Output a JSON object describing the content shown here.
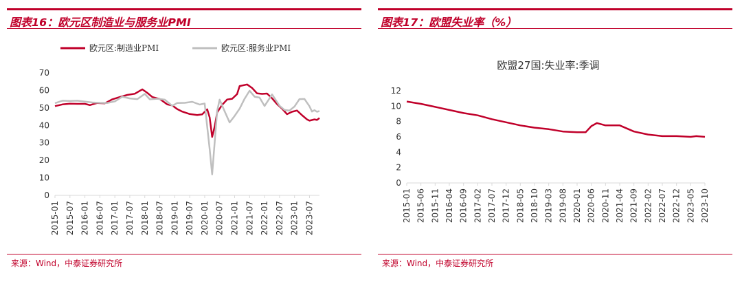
{
  "panels": {
    "left": {
      "title": "图表16：欧元区制造业与服务业PMI",
      "source": "来源：Wind，中泰证券研究所"
    },
    "right": {
      "title": "图表17：欧盟失业率（%）",
      "source": "来源：Wind，中泰证券研究所"
    }
  },
  "colors": {
    "accent": "#c0002a",
    "series_red": "#c0002a",
    "series_gray": "#bfbfbf",
    "axis": "#d9d9d9"
  },
  "chart_data": [
    {
      "type": "line",
      "title": "",
      "legend_position": "top",
      "ylim": [
        0,
        70
      ],
      "yticks": [
        0,
        10,
        20,
        30,
        40,
        50,
        60,
        70
      ],
      "xlim": [
        "2015-01",
        "2023-11"
      ],
      "xtick_labels": [
        "2015-01",
        "2015-07",
        "2016-01",
        "2016-07",
        "2017-01",
        "2017-07",
        "2018-01",
        "2018-07",
        "2019-01",
        "2019-07",
        "2020-01",
        "2020-07",
        "2021-01",
        "2021-07",
        "2022-01",
        "2022-07",
        "2023-01",
        "2023-07"
      ],
      "series": [
        {
          "name": "欧元区:制造业PMI",
          "color": "#c0002a",
          "points": [
            [
              "2015-01",
              51.0
            ],
            [
              "2015-04",
              52.0
            ],
            [
              "2015-07",
              52.4
            ],
            [
              "2015-10",
              52.3
            ],
            [
              "2016-01",
              52.3
            ],
            [
              "2016-03",
              51.6
            ],
            [
              "2016-06",
              52.8
            ],
            [
              "2016-09",
              52.6
            ],
            [
              "2016-12",
              54.9
            ],
            [
              "2017-03",
              56.2
            ],
            [
              "2017-06",
              57.4
            ],
            [
              "2017-09",
              58.1
            ],
            [
              "2017-12",
              60.6
            ],
            [
              "2018-02",
              58.6
            ],
            [
              "2018-04",
              56.2
            ],
            [
              "2018-07",
              55.1
            ],
            [
              "2018-10",
              52.0
            ],
            [
              "2018-12",
              51.4
            ],
            [
              "2019-02",
              49.3
            ],
            [
              "2019-04",
              47.9
            ],
            [
              "2019-07",
              46.5
            ],
            [
              "2019-10",
              45.9
            ],
            [
              "2019-12",
              46.3
            ],
            [
              "2020-02",
              49.2
            ],
            [
              "2020-03",
              44.5
            ],
            [
              "2020-04",
              33.4
            ],
            [
              "2020-05",
              39.4
            ],
            [
              "2020-06",
              47.4
            ],
            [
              "2020-08",
              51.7
            ],
            [
              "2020-10",
              54.8
            ],
            [
              "2020-12",
              55.2
            ],
            [
              "2021-02",
              57.9
            ],
            [
              "2021-03",
              62.5
            ],
            [
              "2021-06",
              63.4
            ],
            [
              "2021-08",
              61.4
            ],
            [
              "2021-10",
              58.3
            ],
            [
              "2021-12",
              58.0
            ],
            [
              "2022-02",
              58.2
            ],
            [
              "2022-04",
              55.5
            ],
            [
              "2022-06",
              52.1
            ],
            [
              "2022-08",
              49.6
            ],
            [
              "2022-10",
              46.4
            ],
            [
              "2022-12",
              47.8
            ],
            [
              "2023-02",
              48.5
            ],
            [
              "2023-04",
              45.8
            ],
            [
              "2023-06",
              43.4
            ],
            [
              "2023-07",
              42.7
            ],
            [
              "2023-09",
              43.4
            ],
            [
              "2023-10",
              43.1
            ],
            [
              "2023-11",
              44.2
            ]
          ]
        },
        {
          "name": "欧元区:服务业PMI",
          "color": "#bfbfbf",
          "points": [
            [
              "2015-01",
              52.7
            ],
            [
              "2015-04",
              54.1
            ],
            [
              "2015-07",
              54.0
            ],
            [
              "2015-10",
              54.1
            ],
            [
              "2016-01",
              53.6
            ],
            [
              "2016-04",
              53.1
            ],
            [
              "2016-07",
              52.9
            ],
            [
              "2016-10",
              52.8
            ],
            [
              "2017-01",
              53.7
            ],
            [
              "2017-04",
              56.4
            ],
            [
              "2017-07",
              55.4
            ],
            [
              "2017-10",
              55.0
            ],
            [
              "2018-01",
              58.0
            ],
            [
              "2018-03",
              54.9
            ],
            [
              "2018-06",
              55.2
            ],
            [
              "2018-09",
              54.7
            ],
            [
              "2018-12",
              51.2
            ],
            [
              "2019-02",
              52.8
            ],
            [
              "2019-05",
              52.9
            ],
            [
              "2019-08",
              53.5
            ],
            [
              "2019-11",
              51.9
            ],
            [
              "2020-01",
              52.5
            ],
            [
              "2020-03",
              26.4
            ],
            [
              "2020-04",
              12.0
            ],
            [
              "2020-05",
              30.5
            ],
            [
              "2020-06",
              48.3
            ],
            [
              "2020-07",
              54.7
            ],
            [
              "2020-09",
              48.0
            ],
            [
              "2020-11",
              41.7
            ],
            [
              "2021-01",
              45.4
            ],
            [
              "2021-03",
              49.6
            ],
            [
              "2021-05",
              55.2
            ],
            [
              "2021-07",
              59.8
            ],
            [
              "2021-09",
              56.4
            ],
            [
              "2021-11",
              55.9
            ],
            [
              "2022-01",
              51.1
            ],
            [
              "2022-04",
              57.7
            ],
            [
              "2022-07",
              51.2
            ],
            [
              "2022-09",
              48.8
            ],
            [
              "2022-11",
              48.5
            ],
            [
              "2023-01",
              50.8
            ],
            [
              "2023-03",
              55.0
            ],
            [
              "2023-05",
              55.1
            ],
            [
              "2023-07",
              50.9
            ],
            [
              "2023-08",
              47.9
            ],
            [
              "2023-09",
              48.7
            ],
            [
              "2023-10",
              47.8
            ],
            [
              "2023-11",
              48.2
            ]
          ]
        }
      ]
    },
    {
      "type": "line",
      "title": "欧盟27国:失业率:季调",
      "ylim": [
        0,
        12
      ],
      "yticks": [
        0,
        2,
        4,
        6,
        8,
        10,
        12
      ],
      "xlim": [
        "2015-01",
        "2023-10"
      ],
      "xtick_labels": [
        "2015-01",
        "2015-06",
        "2015-11",
        "2016-04",
        "2016-09",
        "2017-02",
        "2017-07",
        "2017-12",
        "2018-05",
        "2018-10",
        "2019-03",
        "2019-08",
        "2020-01",
        "2020-06",
        "2020-11",
        "2021-04",
        "2021-09",
        "2022-02",
        "2022-07",
        "2022-12",
        "2023-05",
        "2023-10"
      ],
      "series": [
        {
          "name": "欧盟27国:失业率:季调",
          "color": "#c0002a",
          "points": [
            [
              "2015-01",
              10.6
            ],
            [
              "2015-06",
              10.3
            ],
            [
              "2015-11",
              9.9
            ],
            [
              "2016-04",
              9.5
            ],
            [
              "2016-09",
              9.1
            ],
            [
              "2017-02",
              8.8
            ],
            [
              "2017-07",
              8.3
            ],
            [
              "2017-12",
              7.9
            ],
            [
              "2018-05",
              7.5
            ],
            [
              "2018-10",
              7.2
            ],
            [
              "2019-03",
              7.0
            ],
            [
              "2019-08",
              6.7
            ],
            [
              "2020-01",
              6.6
            ],
            [
              "2020-04",
              6.6
            ],
            [
              "2020-06",
              7.4
            ],
            [
              "2020-08",
              7.8
            ],
            [
              "2020-11",
              7.5
            ],
            [
              "2021-04",
              7.5
            ],
            [
              "2021-09",
              6.7
            ],
            [
              "2022-02",
              6.3
            ],
            [
              "2022-07",
              6.1
            ],
            [
              "2022-12",
              6.1
            ],
            [
              "2023-05",
              6.0
            ],
            [
              "2023-07",
              6.1
            ],
            [
              "2023-10",
              6.0
            ]
          ]
        }
      ]
    }
  ]
}
